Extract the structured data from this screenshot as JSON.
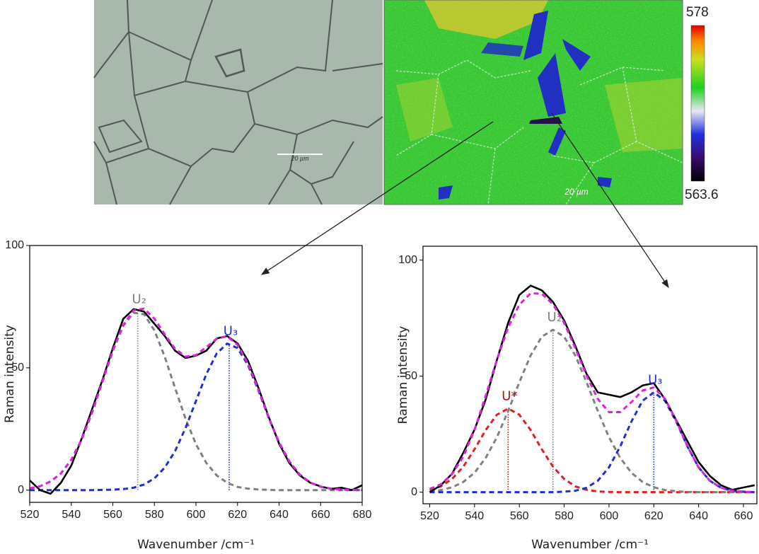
{
  "images": {
    "scale_bar_left": "20 µm",
    "scale_bar_right": "20 µm",
    "colorbar_max": 578,
    "colorbar_min": 563.6
  },
  "chart_data": [
    {
      "type": "line",
      "x_label": "Wavenumber /cm⁻¹",
      "y_label": "Raman intensity",
      "xlim": [
        520,
        680
      ],
      "ylim": [
        -5,
        100
      ],
      "xticks": [
        520,
        540,
        560,
        580,
        600,
        620,
        640,
        660,
        680
      ],
      "yticks": [
        0,
        50,
        100
      ],
      "x": [
        520,
        525,
        530,
        535,
        540,
        545,
        550,
        555,
        560,
        565,
        570,
        575,
        580,
        585,
        590,
        595,
        600,
        605,
        610,
        615,
        620,
        625,
        630,
        635,
        640,
        645,
        650,
        655,
        660,
        665,
        670,
        675,
        680
      ],
      "series": [
        {
          "color": "#808080",
          "style": "dashed",
          "values": [
            0.7,
            1.6,
            3.5,
            6.8,
            12.4,
            20.7,
            31.6,
            44.3,
            56.9,
            67.1,
            72.5,
            71.9,
            65.3,
            54.5,
            41.7,
            29.2,
            18.8,
            11.1,
            6.0,
            3.0,
            1.3,
            0.6,
            0.3,
            0.1,
            0,
            0,
            0,
            0,
            0,
            0,
            0,
            0,
            0
          ]
        },
        {
          "color": "#1f2fd0",
          "style": "dashed",
          "values": [
            0,
            0,
            0,
            0,
            0,
            0,
            0,
            0.1,
            0.2,
            0.4,
            1.0,
            2.3,
            4.8,
            9.2,
            16.0,
            25.4,
            36.4,
            47.4,
            55.9,
            59.9,
            58.1,
            51.2,
            40.9,
            29.6,
            19.5,
            11.6,
            6.3,
            3.1,
            1.4,
            0.6,
            0.2,
            0.1,
            0
          ]
        },
        {
          "color": "#000000",
          "style": "solid",
          "values": [
            4,
            0,
            -1.5,
            3,
            10,
            21,
            33,
            45,
            58,
            70,
            74,
            73,
            68,
            63,
            57,
            54,
            55,
            57,
            62,
            63,
            60,
            53,
            42,
            30,
            19,
            11,
            6,
            3,
            1.5,
            0.5,
            1,
            0,
            2
          ]
        },
        {
          "color": "#e020e0",
          "style": "dashed",
          "values": [
            0.7,
            1.6,
            3.5,
            6.8,
            12.4,
            20.7,
            31.6,
            44.4,
            57.1,
            67.5,
            73.5,
            74.2,
            70.1,
            63.7,
            57.7,
            54.6,
            55.2,
            58.5,
            61.9,
            62.9,
            59.4,
            51.8,
            41.2,
            29.7,
            19.5,
            11.6,
            6.3,
            3.1,
            1.4,
            0.6,
            0.2,
            0.1,
            0
          ]
        }
      ],
      "peaks": [
        {
          "label": "U₂",
          "x": 572,
          "height": 73,
          "color": "#808080"
        },
        {
          "label": "U₃",
          "x": 616,
          "height": 60,
          "color": "#1f2fd0"
        }
      ]
    },
    {
      "type": "line",
      "x_label": "Wavenumber /cm⁻¹",
      "y_label": "Raman intensity",
      "xlim": [
        517,
        666
      ],
      "ylim": [
        -5,
        106
      ],
      "xticks": [
        520,
        540,
        560,
        580,
        600,
        620,
        640,
        660
      ],
      "yticks": [
        0,
        50,
        100
      ],
      "x": [
        520,
        525,
        530,
        535,
        540,
        545,
        550,
        555,
        560,
        565,
        570,
        575,
        580,
        585,
        590,
        595,
        600,
        605,
        610,
        615,
        620,
        625,
        630,
        635,
        640,
        645,
        650,
        655,
        660,
        665
      ],
      "series": [
        {
          "color": "#dd2222",
          "style": "dashed",
          "values": [
            1.0,
            2.5,
            5.7,
            11.0,
            18.5,
            26.8,
            33.4,
            36,
            33.4,
            26.8,
            18.5,
            11.0,
            5.7,
            2.5,
            1.0,
            0.3,
            0.1,
            0,
            0,
            0,
            0,
            0,
            0,
            0,
            0,
            0,
            0,
            0,
            0,
            0
          ]
        },
        {
          "color": "#808080",
          "style": "dashed",
          "values": [
            0.4,
            0.9,
            2.1,
            4.4,
            8.4,
            14.8,
            23.7,
            35.0,
            47.4,
            58.9,
            67.0,
            70,
            67.0,
            58.9,
            47.4,
            35.0,
            23.7,
            14.8,
            8.4,
            4.4,
            2.1,
            0.9,
            0.4,
            0.1,
            0,
            0,
            0,
            0,
            0,
            0
          ]
        },
        {
          "color": "#1f2fd0",
          "style": "dashed",
          "values": [
            0,
            0,
            0,
            0,
            0,
            0,
            0,
            0,
            0,
            0,
            0,
            0,
            0.2,
            0.6,
            1.9,
            4.9,
            10.7,
            19.7,
            30.4,
            39.4,
            43,
            39.4,
            30.4,
            19.7,
            10.7,
            4.9,
            1.9,
            0.6,
            0.2,
            0
          ]
        },
        {
          "color": "#000000",
          "style": "solid",
          "values": [
            0,
            3,
            8,
            17,
            27,
            40,
            57,
            73,
            85,
            89,
            87,
            82,
            74,
            63,
            51,
            43,
            42,
            41,
            43,
            46,
            47,
            40,
            31,
            22,
            13,
            7,
            3,
            1,
            2,
            3
          ]
        },
        {
          "color": "#e020e0",
          "style": "dashed",
          "values": [
            1.4,
            3.4,
            7.8,
            15.4,
            26.9,
            41.6,
            57.1,
            71.0,
            80.8,
            85.7,
            85.5,
            81.0,
            72.9,
            62.0,
            50.3,
            40.2,
            34.5,
            34.5,
            38.8,
            43.8,
            45.1,
            40.3,
            30.8,
            19.8,
            10.7,
            4.9,
            1.9,
            0.6,
            0.2,
            0
          ]
        }
      ],
      "peaks": [
        {
          "label": "U*",
          "x": 555,
          "height": 36,
          "color": "#b01818"
        },
        {
          "label": "U₂",
          "x": 575,
          "height": 70,
          "color": "#808080"
        },
        {
          "label": "U₃",
          "x": 620,
          "height": 43,
          "color": "#1f2fd0"
        }
      ]
    }
  ]
}
